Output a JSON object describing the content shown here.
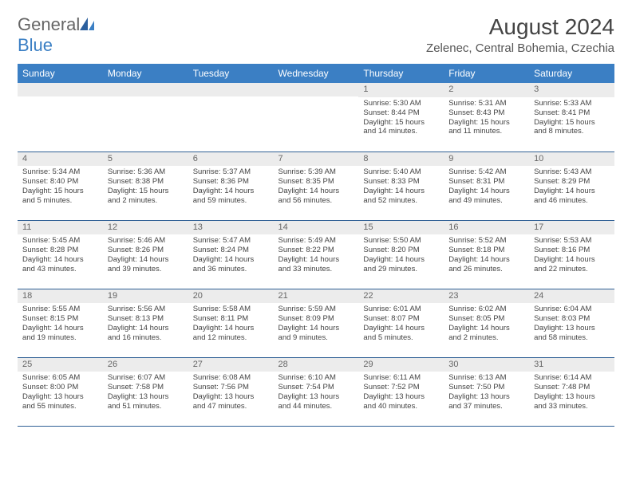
{
  "brand": {
    "part1": "General",
    "part2": "Blue"
  },
  "title": "August 2024",
  "location": "Zelenec, Central Bohemia, Czechia",
  "colors": {
    "header_bg": "#3b7fc4",
    "header_text": "#ffffff",
    "daynum_bg": "#ececec",
    "border": "#2f5f95",
    "brand_blue": "#3b7fc4"
  },
  "weekdays": [
    "Sunday",
    "Monday",
    "Tuesday",
    "Wednesday",
    "Thursday",
    "Friday",
    "Saturday"
  ],
  "weeks": [
    [
      null,
      null,
      null,
      null,
      {
        "d": "1",
        "sr": "5:30 AM",
        "ss": "8:44 PM",
        "dl": "15 hours and 14 minutes."
      },
      {
        "d": "2",
        "sr": "5:31 AM",
        "ss": "8:43 PM",
        "dl": "15 hours and 11 minutes."
      },
      {
        "d": "3",
        "sr": "5:33 AM",
        "ss": "8:41 PM",
        "dl": "15 hours and 8 minutes."
      }
    ],
    [
      {
        "d": "4",
        "sr": "5:34 AM",
        "ss": "8:40 PM",
        "dl": "15 hours and 5 minutes."
      },
      {
        "d": "5",
        "sr": "5:36 AM",
        "ss": "8:38 PM",
        "dl": "15 hours and 2 minutes."
      },
      {
        "d": "6",
        "sr": "5:37 AM",
        "ss": "8:36 PM",
        "dl": "14 hours and 59 minutes."
      },
      {
        "d": "7",
        "sr": "5:39 AM",
        "ss": "8:35 PM",
        "dl": "14 hours and 56 minutes."
      },
      {
        "d": "8",
        "sr": "5:40 AM",
        "ss": "8:33 PM",
        "dl": "14 hours and 52 minutes."
      },
      {
        "d": "9",
        "sr": "5:42 AM",
        "ss": "8:31 PM",
        "dl": "14 hours and 49 minutes."
      },
      {
        "d": "10",
        "sr": "5:43 AM",
        "ss": "8:29 PM",
        "dl": "14 hours and 46 minutes."
      }
    ],
    [
      {
        "d": "11",
        "sr": "5:45 AM",
        "ss": "8:28 PM",
        "dl": "14 hours and 43 minutes."
      },
      {
        "d": "12",
        "sr": "5:46 AM",
        "ss": "8:26 PM",
        "dl": "14 hours and 39 minutes."
      },
      {
        "d": "13",
        "sr": "5:47 AM",
        "ss": "8:24 PM",
        "dl": "14 hours and 36 minutes."
      },
      {
        "d": "14",
        "sr": "5:49 AM",
        "ss": "8:22 PM",
        "dl": "14 hours and 33 minutes."
      },
      {
        "d": "15",
        "sr": "5:50 AM",
        "ss": "8:20 PM",
        "dl": "14 hours and 29 minutes."
      },
      {
        "d": "16",
        "sr": "5:52 AM",
        "ss": "8:18 PM",
        "dl": "14 hours and 26 minutes."
      },
      {
        "d": "17",
        "sr": "5:53 AM",
        "ss": "8:16 PM",
        "dl": "14 hours and 22 minutes."
      }
    ],
    [
      {
        "d": "18",
        "sr": "5:55 AM",
        "ss": "8:15 PM",
        "dl": "14 hours and 19 minutes."
      },
      {
        "d": "19",
        "sr": "5:56 AM",
        "ss": "8:13 PM",
        "dl": "14 hours and 16 minutes."
      },
      {
        "d": "20",
        "sr": "5:58 AM",
        "ss": "8:11 PM",
        "dl": "14 hours and 12 minutes."
      },
      {
        "d": "21",
        "sr": "5:59 AM",
        "ss": "8:09 PM",
        "dl": "14 hours and 9 minutes."
      },
      {
        "d": "22",
        "sr": "6:01 AM",
        "ss": "8:07 PM",
        "dl": "14 hours and 5 minutes."
      },
      {
        "d": "23",
        "sr": "6:02 AM",
        "ss": "8:05 PM",
        "dl": "14 hours and 2 minutes."
      },
      {
        "d": "24",
        "sr": "6:04 AM",
        "ss": "8:03 PM",
        "dl": "13 hours and 58 minutes."
      }
    ],
    [
      {
        "d": "25",
        "sr": "6:05 AM",
        "ss": "8:00 PM",
        "dl": "13 hours and 55 minutes."
      },
      {
        "d": "26",
        "sr": "6:07 AM",
        "ss": "7:58 PM",
        "dl": "13 hours and 51 minutes."
      },
      {
        "d": "27",
        "sr": "6:08 AM",
        "ss": "7:56 PM",
        "dl": "13 hours and 47 minutes."
      },
      {
        "d": "28",
        "sr": "6:10 AM",
        "ss": "7:54 PM",
        "dl": "13 hours and 44 minutes."
      },
      {
        "d": "29",
        "sr": "6:11 AM",
        "ss": "7:52 PM",
        "dl": "13 hours and 40 minutes."
      },
      {
        "d": "30",
        "sr": "6:13 AM",
        "ss": "7:50 PM",
        "dl": "13 hours and 37 minutes."
      },
      {
        "d": "31",
        "sr": "6:14 AM",
        "ss": "7:48 PM",
        "dl": "13 hours and 33 minutes."
      }
    ]
  ],
  "labels": {
    "sunrise": "Sunrise:",
    "sunset": "Sunset:",
    "daylight": "Daylight:"
  }
}
